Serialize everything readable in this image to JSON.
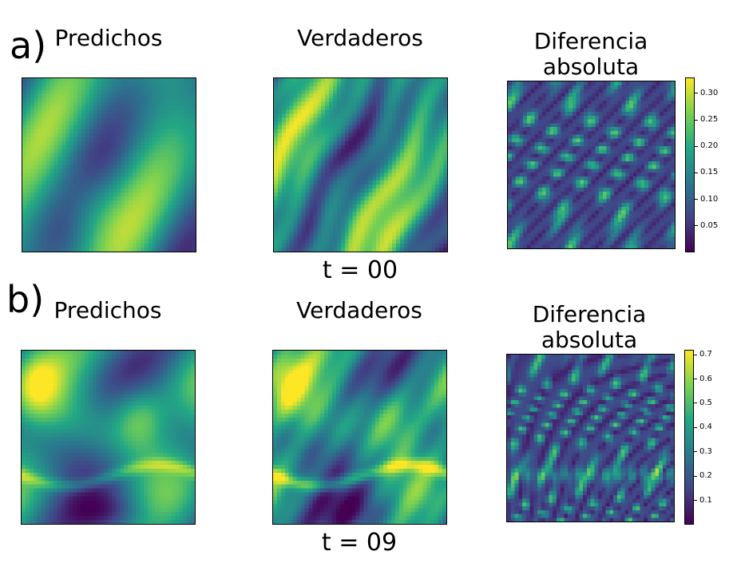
{
  "colors": {
    "viridis": [
      "#440154",
      "#414487",
      "#2a788e",
      "#22a884",
      "#7ad151",
      "#fde725"
    ]
  },
  "chart_data": [
    {
      "panel": "a)",
      "type": "heatmap",
      "time_label": "t = 00",
      "plots": [
        {
          "title": "Predichos",
          "field": "smooth"
        },
        {
          "title": "Verdaderos",
          "field": "sharp"
        },
        {
          "title": "Diferencia\nabsoluta",
          "field": "difference",
          "colorbar": {
            "ticks": [
              "0.05",
              "0.10",
              "0.15",
              "0.20",
              "0.25",
              "0.30"
            ],
            "range": [
              0,
              0.33
            ]
          }
        }
      ]
    },
    {
      "panel": "b)",
      "type": "heatmap",
      "time_label": "t = 09",
      "plots": [
        {
          "title": "Predichos",
          "field": "smooth"
        },
        {
          "title": "Verdaderos",
          "field": "sharp"
        },
        {
          "title": "Diferencia\nabsoluta",
          "field": "difference",
          "colorbar": {
            "ticks": [
              "0.1",
              "0.2",
              "0.3",
              "0.4",
              "0.5",
              "0.6",
              "0.7"
            ],
            "range": [
              0,
              0.72
            ]
          }
        }
      ]
    }
  ]
}
